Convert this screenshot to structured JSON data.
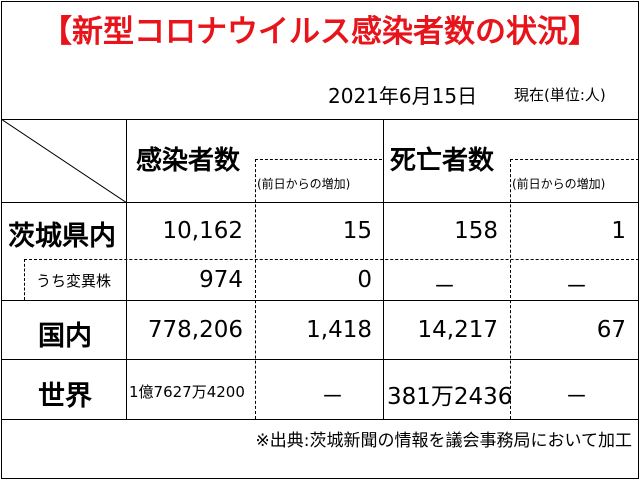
{
  "title": "【新型コロナウイルス感染者数の状況】",
  "date": "2021年6月15日",
  "unit_note": "現在(単位:人)",
  "headers": {
    "infections": "感染者数",
    "infections_delta": "(前日からの増加)",
    "deaths": "死亡者数",
    "deaths_delta": "(前日からの増加)"
  },
  "rows": [
    {
      "label": "茨城県内",
      "infections": "10,162",
      "infections_delta": "15",
      "deaths": "158",
      "deaths_delta": "1"
    },
    {
      "label": "うち変異株",
      "infections": "974",
      "infections_delta": "0",
      "deaths": "－",
      "deaths_delta": "－"
    },
    {
      "label": "国内",
      "infections": "778,206",
      "infections_delta": "1,418",
      "deaths": "14,217",
      "deaths_delta": "67"
    },
    {
      "label": "世界",
      "infections": "1億7627万4200",
      "infections_delta": "－",
      "deaths": "381万2436",
      "deaths_delta": "－"
    }
  ],
  "source": "※出典:茨城新聞の情報を議会事務局において加工"
}
